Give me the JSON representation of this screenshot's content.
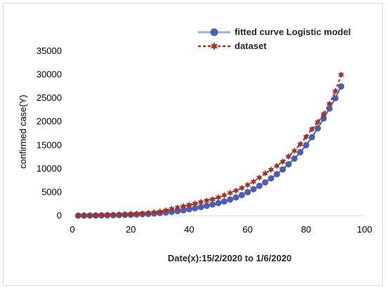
{
  "chart_data": {
    "type": "line",
    "title": "",
    "xlabel": "Date(x):15/2/2020 to 1/6/2020",
    "ylabel": "confirmed case(Y)",
    "xlim": [
      0,
      100
    ],
    "ylim": [
      0,
      35000
    ],
    "x_ticks": [
      0,
      20,
      40,
      60,
      80,
      100
    ],
    "y_ticks": [
      0,
      5000,
      10000,
      15000,
      20000,
      25000,
      30000,
      35000
    ],
    "x_tick_labels": [
      "0",
      "20",
      "40",
      "60",
      "80",
      "100"
    ],
    "y_tick_labels": [
      "0",
      "5000",
      "10000",
      "15000",
      "20000",
      "25000",
      "30000",
      "35000"
    ],
    "grid": false,
    "legend_position": "top-right",
    "x": [
      2,
      4,
      6,
      8,
      10,
      12,
      14,
      16,
      18,
      20,
      22,
      24,
      26,
      28,
      30,
      32,
      34,
      36,
      38,
      40,
      42,
      44,
      46,
      48,
      50,
      52,
      54,
      56,
      58,
      60,
      62,
      64,
      66,
      68,
      70,
      72,
      74,
      76,
      78,
      80,
      82,
      84,
      86,
      88,
      90,
      92
    ],
    "series": [
      {
        "name": "fitted curve Logistic model",
        "color": "#4a5fb0",
        "marker": "circle",
        "values": [
          20,
          30,
          40,
          55,
          70,
          90,
          110,
          140,
          170,
          210,
          260,
          320,
          390,
          470,
          570,
          690,
          830,
          990,
          1170,
          1380,
          1600,
          1850,
          2120,
          2400,
          2700,
          3050,
          3450,
          3900,
          4400,
          5000,
          5650,
          6350,
          7100,
          7950,
          8850,
          9850,
          10950,
          12150,
          13500,
          15000,
          16700,
          18600,
          20700,
          22800,
          25000,
          27500
        ]
      },
      {
        "name": "dataset",
        "color": "#a33228",
        "marker": "star",
        "values": [
          50,
          70,
          100,
          130,
          160,
          200,
          240,
          280,
          330,
          380,
          440,
          510,
          600,
          720,
          900,
          1150,
          1450,
          1750,
          2000,
          2300,
          2600,
          2900,
          3200,
          3500,
          3900,
          4350,
          4850,
          5350,
          5900,
          6550,
          7250,
          8100,
          9000,
          9800,
          10600,
          11500,
          12600,
          13800,
          15200,
          16800,
          18400,
          19900,
          21600,
          23800,
          26500,
          30000
        ]
      }
    ]
  }
}
